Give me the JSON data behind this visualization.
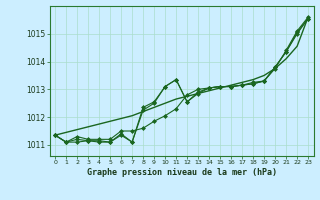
{
  "bg_color": "#cceeff",
  "grid_color": "#aaddcc",
  "line_color": "#1a6620",
  "xlabel": "Graphe pression niveau de la mer (hPa)",
  "x_ticks": [
    0,
    1,
    2,
    3,
    4,
    5,
    6,
    7,
    8,
    9,
    10,
    11,
    12,
    13,
    14,
    15,
    16,
    17,
    18,
    19,
    20,
    21,
    22,
    23
  ],
  "ylim": [
    1010.6,
    1016.0
  ],
  "y_ticks": [
    1011,
    1012,
    1013,
    1014,
    1015
  ],
  "series_with_markers": [
    [
      1011.35,
      1011.1,
      1011.1,
      1011.15,
      1011.15,
      1011.1,
      1011.4,
      1011.1,
      1012.25,
      1012.5,
      1013.1,
      1013.35,
      1012.55,
      1012.9,
      1013.05,
      1013.1,
      1013.1,
      1013.15,
      1013.2,
      1013.3,
      1013.8,
      1014.35,
      1015.05,
      1015.55
    ],
    [
      1011.35,
      1011.1,
      1011.3,
      1011.2,
      1011.2,
      1011.2,
      1011.5,
      1011.5,
      1011.6,
      1011.85,
      1012.05,
      1012.3,
      1012.8,
      1013.0,
      1013.05,
      1013.1,
      1013.1,
      1013.15,
      1013.25,
      1013.3,
      1013.75,
      1014.4,
      1015.1,
      1015.6
    ],
    [
      1011.35,
      1011.1,
      1011.2,
      1011.15,
      1011.1,
      1011.1,
      1011.35,
      1011.1,
      1012.35,
      1012.55,
      1013.1,
      1013.35,
      1012.55,
      1012.85,
      1013.05,
      1013.1,
      1013.1,
      1013.15,
      1013.2,
      1013.3,
      1013.8,
      1014.35,
      1015.0,
      1015.55
    ]
  ],
  "series_smooth": [
    1011.35,
    1011.45,
    1011.55,
    1011.65,
    1011.75,
    1011.85,
    1011.95,
    1012.05,
    1012.2,
    1012.35,
    1012.5,
    1012.65,
    1012.75,
    1012.85,
    1012.95,
    1013.05,
    1013.15,
    1013.25,
    1013.35,
    1013.5,
    1013.75,
    1014.1,
    1014.55,
    1015.6
  ]
}
